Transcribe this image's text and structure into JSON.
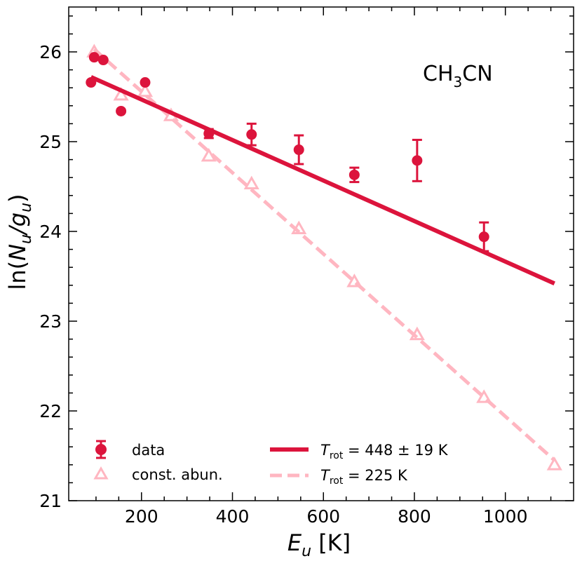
{
  "chart_data": {
    "type": "scatter",
    "xlabel_main": "E",
    "xlabel_sub": "u",
    "xlabel_unit": " [K]",
    "ylabel_prefix": "ln(",
    "ylabel_N": "N",
    "ylabel_sub1": "u",
    "ylabel_slash": "/",
    "ylabel_g": "g",
    "ylabel_sub2": "u",
    "ylabel_suffix": ")",
    "xlim": [
      40,
      1150
    ],
    "ylim": [
      21,
      26.5
    ],
    "x_ticks": [
      200,
      400,
      600,
      800,
      1000
    ],
    "y_ticks": [
      21,
      22,
      23,
      24,
      25,
      26
    ],
    "x_tick_labels": [
      "200",
      "400",
      "600",
      "800",
      "1000"
    ],
    "y_tick_labels": [
      "21",
      "22",
      "23",
      "24",
      "25",
      "26"
    ],
    "annotation": {
      "main": "CH",
      "sub": "3",
      "rest": "CN"
    },
    "colors": {
      "data": "#dc143c",
      "const": "#ffb6c1"
    },
    "series": [
      {
        "name": "data",
        "kind": "errorbar",
        "x": [
          89,
          96,
          116,
          155,
          208,
          348,
          442,
          546,
          668,
          806,
          953
        ],
        "y": [
          25.66,
          25.94,
          25.91,
          25.34,
          25.66,
          25.09,
          25.08,
          24.91,
          24.63,
          24.79,
          23.94
        ],
        "yerr": [
          0.02,
          0.02,
          0.02,
          0.02,
          0.02,
          0.05,
          0.12,
          0.16,
          0.08,
          0.23,
          0.16
        ]
      },
      {
        "name": "const. abun.",
        "kind": "marker",
        "x": [
          96,
          155,
          208,
          265,
          348,
          442,
          546,
          668,
          806,
          953,
          1108
        ],
        "y": [
          26.0,
          25.52,
          25.56,
          25.29,
          24.84,
          24.53,
          24.03,
          23.44,
          22.85,
          22.15,
          21.4
        ]
      },
      {
        "name": "T_rot = 448 ± 19 K",
        "kind": "line",
        "x": [
          89,
          1108
        ],
        "y": [
          25.72,
          23.42
        ]
      },
      {
        "name": "T_rot = 225 K",
        "kind": "dashed-line",
        "x": [
          96,
          1108
        ],
        "y": [
          26.03,
          21.45
        ]
      }
    ],
    "legend": {
      "placement": "lower",
      "data_label": "data",
      "const_label": "const. abun.",
      "fit1_T": "T",
      "fit1_sub": "rot",
      "fit1_rest": " = 448 ± 19 K",
      "fit2_T": "T",
      "fit2_sub": "rot",
      "fit2_rest": " = 225 K"
    }
  }
}
